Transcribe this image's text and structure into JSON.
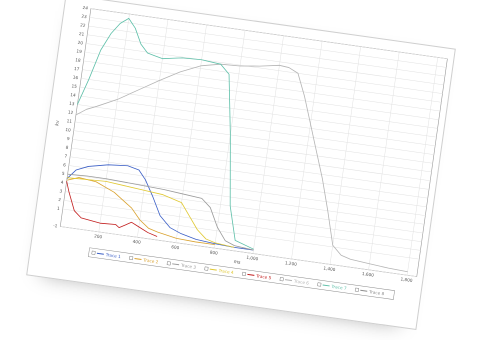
{
  "chart_data": {
    "type": "line",
    "title": "",
    "xlabel": "ms",
    "ylabel": "kv",
    "xlim": [
      0,
      1850
    ],
    "ylim": [
      -1,
      24
    ],
    "x_ticks": [
      "200",
      "400",
      "600",
      "800",
      "1,000",
      "1,200",
      "1,400",
      "1,600",
      "1,800"
    ],
    "x_tick_values": [
      200,
      400,
      600,
      800,
      1000,
      1200,
      1400,
      1600,
      1800
    ],
    "y_ticks": [
      "-1",
      "1",
      "2",
      "3",
      "4",
      "5",
      "6",
      "7",
      "8",
      "9",
      "10",
      "11",
      "12",
      "13",
      "14",
      "15",
      "16",
      "17",
      "18",
      "19",
      "20",
      "21",
      "22",
      "23",
      "24"
    ],
    "y_tick_values": [
      -1,
      1,
      2,
      3,
      4,
      5,
      6,
      7,
      8,
      9,
      10,
      11,
      12,
      13,
      14,
      15,
      16,
      17,
      18,
      19,
      20,
      21,
      22,
      23,
      24
    ],
    "grid": true,
    "legend_position": "bottom",
    "series": [
      {
        "name": "Trace 1",
        "color": "#3b5fc6",
        "x": [
          0,
          40,
          100,
          200,
          300,
          360,
          400,
          450,
          500,
          560,
          620,
          700,
          800,
          900,
          1000
        ],
        "y": [
          4.5,
          5.6,
          6.2,
          6.7,
          6.9,
          6.6,
          5.6,
          3.8,
          1.8,
          0.6,
          0.1,
          -0.3,
          -0.5,
          -0.6,
          -0.6
        ]
      },
      {
        "name": "Trace 2",
        "color": "#d9a230",
        "x": [
          0,
          60,
          150,
          250,
          350,
          400,
          450,
          500,
          600,
          700,
          800
        ],
        "y": [
          4.3,
          4.8,
          4.6,
          3.7,
          2.2,
          1.0,
          0.2,
          -0.1,
          -0.5,
          -0.6,
          -0.6
        ]
      },
      {
        "name": "Trace 3",
        "color": "#9a9a9a",
        "x": [
          0,
          100,
          200,
          300,
          400,
          500,
          600,
          700,
          750,
          800,
          850,
          900,
          1000
        ],
        "y": [
          5.0,
          5.1,
          5.1,
          5.0,
          4.9,
          4.8,
          4.6,
          4.4,
          3.5,
          1.4,
          0.0,
          -0.4,
          -0.6
        ]
      },
      {
        "name": "Trace 4",
        "color": "#e0c832",
        "x": [
          0,
          100,
          200,
          300,
          400,
          500,
          600,
          650,
          700,
          750,
          800,
          900
        ],
        "y": [
          4.6,
          4.7,
          4.8,
          4.6,
          4.4,
          4.2,
          3.6,
          2.2,
          0.8,
          -0.1,
          -0.4,
          -0.6
        ]
      },
      {
        "name": "Trace 5",
        "color": "#c21e1e",
        "x": [
          0,
          20,
          60,
          100,
          200,
          280,
          300,
          330,
          360,
          400,
          450,
          500
        ],
        "y": [
          4.2,
          3.0,
          1.0,
          0.3,
          0.0,
          0.1,
          -0.2,
          0.2,
          0.6,
          0.2,
          -0.3,
          -0.6
        ]
      },
      {
        "name": "Trace 6",
        "color": "#b4b4b4",
        "x": [
          0,
          50,
          100,
          200,
          300,
          400,
          500,
          600,
          700,
          800,
          900,
          1000,
          1050,
          1100,
          1150,
          1200,
          1250,
          1300,
          1350,
          1400,
          1450,
          1500,
          1600,
          1700,
          1800
        ],
        "y": [
          11.8,
          12.6,
          13.1,
          14.2,
          15.6,
          17.0,
          18.3,
          19.3,
          19.8,
          19.9,
          20.2,
          20.6,
          20.5,
          20.0,
          17.5,
          14.5,
          11.5,
          8.5,
          5.0,
          1.2,
          0.2,
          -0.1,
          -0.3,
          -0.5,
          -0.6
        ]
      },
      {
        "name": "Trace 7",
        "color": "#5dbfa8",
        "x": [
          0,
          40,
          80,
          120,
          160,
          200,
          240,
          280,
          320,
          360,
          400,
          450,
          500,
          600,
          700,
          750,
          800,
          850,
          900,
          1000
        ],
        "y": [
          13.0,
          16.0,
          19.5,
          21.5,
          22.8,
          23.5,
          22.5,
          20.8,
          19.9,
          19.7,
          19.5,
          19.7,
          19.9,
          20.0,
          19.8,
          18.8,
          12.0,
          4.0,
          0.2,
          -0.5
        ]
      },
      {
        "name": "Trace 8",
        "color": "#8c8c8c",
        "x": [],
        "y": []
      }
    ]
  }
}
